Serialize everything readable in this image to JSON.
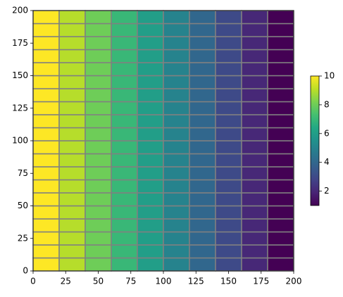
{
  "chart_data": {
    "type": "heatmap",
    "x": [
      0,
      20,
      40,
      60,
      80,
      100,
      120,
      140,
      160,
      180,
      200
    ],
    "y": [
      0,
      10,
      20,
      30,
      40,
      50,
      60,
      70,
      80,
      90,
      100,
      110,
      120,
      130,
      140,
      150,
      160,
      170,
      180,
      190,
      200
    ],
    "values": [
      [
        10,
        9,
        8,
        7,
        6,
        5,
        4,
        3,
        2,
        1
      ],
      [
        10,
        9,
        8,
        7,
        6,
        5,
        4,
        3,
        2,
        1
      ],
      [
        10,
        9,
        8,
        7,
        6,
        5,
        4,
        3,
        2,
        1
      ],
      [
        10,
        9,
        8,
        7,
        6,
        5,
        4,
        3,
        2,
        1
      ],
      [
        10,
        9,
        8,
        7,
        6,
        5,
        4,
        3,
        2,
        1
      ],
      [
        10,
        9,
        8,
        7,
        6,
        5,
        4,
        3,
        2,
        1
      ],
      [
        10,
        9,
        8,
        7,
        6,
        5,
        4,
        3,
        2,
        1
      ],
      [
        10,
        9,
        8,
        7,
        6,
        5,
        4,
        3,
        2,
        1
      ],
      [
        10,
        9,
        8,
        7,
        6,
        5,
        4,
        3,
        2,
        1
      ],
      [
        10,
        9,
        8,
        7,
        6,
        5,
        4,
        3,
        2,
        1
      ],
      [
        10,
        9,
        8,
        7,
        6,
        5,
        4,
        3,
        2,
        1
      ],
      [
        10,
        9,
        8,
        7,
        6,
        5,
        4,
        3,
        2,
        1
      ],
      [
        10,
        9,
        8,
        7,
        6,
        5,
        4,
        3,
        2,
        1
      ],
      [
        10,
        9,
        8,
        7,
        6,
        5,
        4,
        3,
        2,
        1
      ],
      [
        10,
        9,
        8,
        7,
        6,
        5,
        4,
        3,
        2,
        1
      ],
      [
        10,
        9,
        8,
        7,
        6,
        5,
        4,
        3,
        2,
        1
      ],
      [
        10,
        9,
        8,
        7,
        6,
        5,
        4,
        3,
        2,
        1
      ],
      [
        10,
        9,
        8,
        7,
        6,
        5,
        4,
        3,
        2,
        1
      ],
      [
        10,
        9,
        8,
        7,
        6,
        5,
        4,
        3,
        2,
        1
      ],
      [
        10,
        9,
        8,
        7,
        6,
        5,
        4,
        3,
        2,
        1
      ]
    ],
    "xlim": [
      0,
      200
    ],
    "ylim": [
      0,
      200
    ],
    "xticks": [
      0,
      25,
      50,
      75,
      100,
      125,
      150,
      175,
      200
    ],
    "yticks": [
      0,
      25,
      50,
      75,
      100,
      125,
      150,
      175,
      200
    ],
    "colormap": "viridis",
    "edgecolor": "#808080",
    "clim": [
      1,
      10
    ],
    "cticks": [
      2,
      4,
      6,
      8,
      10
    ]
  }
}
